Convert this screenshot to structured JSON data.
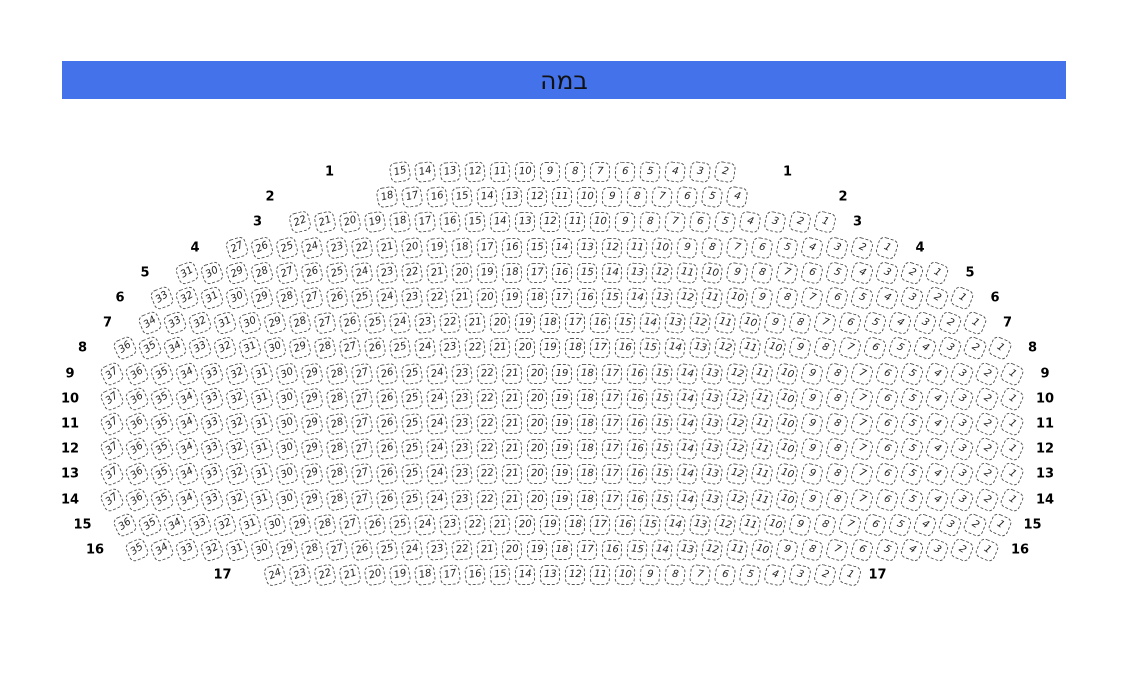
{
  "stage": {
    "label": "במה",
    "background": "#4472ea",
    "text_color": "#111111"
  },
  "seat_style": {
    "border_color": "#555555",
    "number_color": "#222222"
  },
  "rows": [
    {
      "label": "1",
      "from": 15,
      "to": 2
    },
    {
      "label": "2",
      "from": 18,
      "to": 4
    },
    {
      "label": "3",
      "from": 22,
      "to": 1
    },
    {
      "label": "4",
      "from": 27,
      "to": 1
    },
    {
      "label": "5",
      "from": 31,
      "to": 1
    },
    {
      "label": "6",
      "from": 33,
      "to": 1
    },
    {
      "label": "7",
      "from": 34,
      "to": 1
    },
    {
      "label": "8",
      "from": 36,
      "to": 1
    },
    {
      "label": "9",
      "from": 37,
      "to": 1
    },
    {
      "label": "10",
      "from": 37,
      "to": 1
    },
    {
      "label": "11",
      "from": 37,
      "to": 1
    },
    {
      "label": "12",
      "from": 37,
      "to": 1
    },
    {
      "label": "13",
      "from": 37,
      "to": 1
    },
    {
      "label": "14",
      "from": 37,
      "to": 1
    },
    {
      "label": "15",
      "from": 36,
      "to": 1
    },
    {
      "label": "16",
      "from": 35,
      "to": 1
    },
    {
      "label": "17",
      "from": 24,
      "to": 1
    }
  ]
}
